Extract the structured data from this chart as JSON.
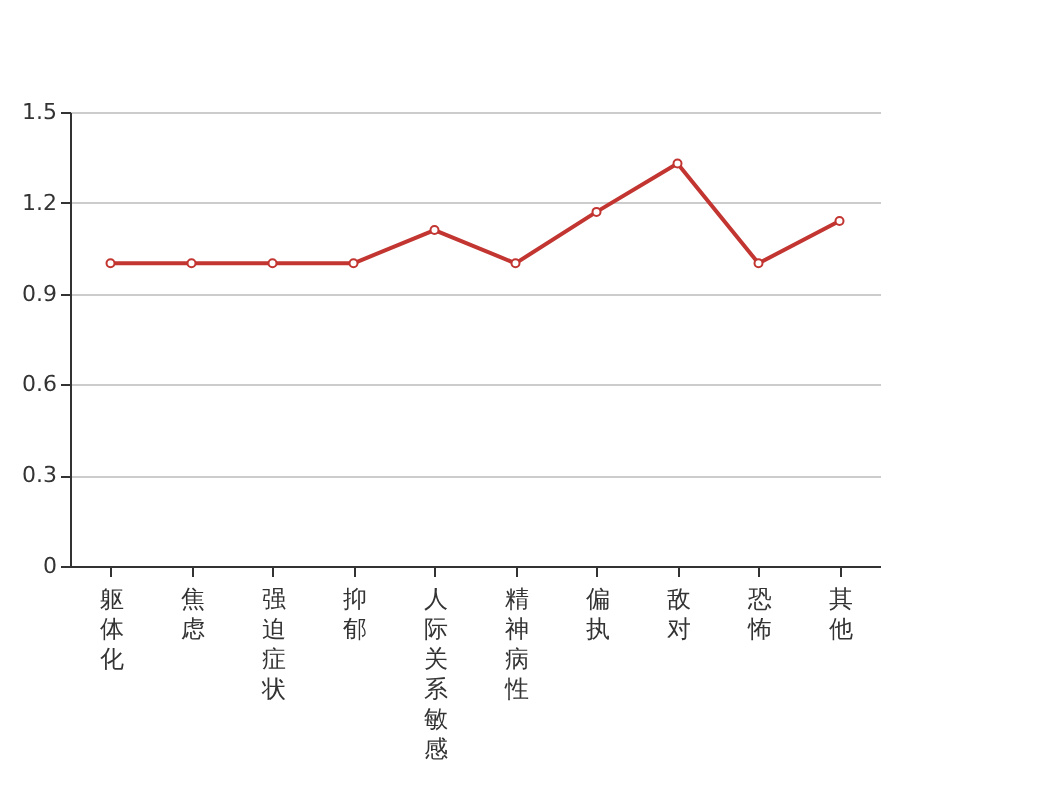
{
  "chart_data": {
    "type": "line",
    "categories": [
      "躯体化",
      "焦虑",
      "强迫症状",
      "抑郁",
      "人际关系敏感",
      "精神病性",
      "偏执",
      "敌对",
      "恐怖",
      "其他"
    ],
    "series": [
      {
        "color": "#c23531",
        "values": [
          1.0,
          1.0,
          1.0,
          1.0,
          1.11,
          1.0,
          1.17,
          1.33,
          1.0,
          1.14
        ]
      }
    ],
    "ylim": [
      0,
      1.5
    ],
    "yticks": [
      0,
      0.3,
      0.6,
      0.9,
      1.2,
      1.5
    ],
    "grid": "y",
    "marker": "circle",
    "line_style": "solid"
  }
}
